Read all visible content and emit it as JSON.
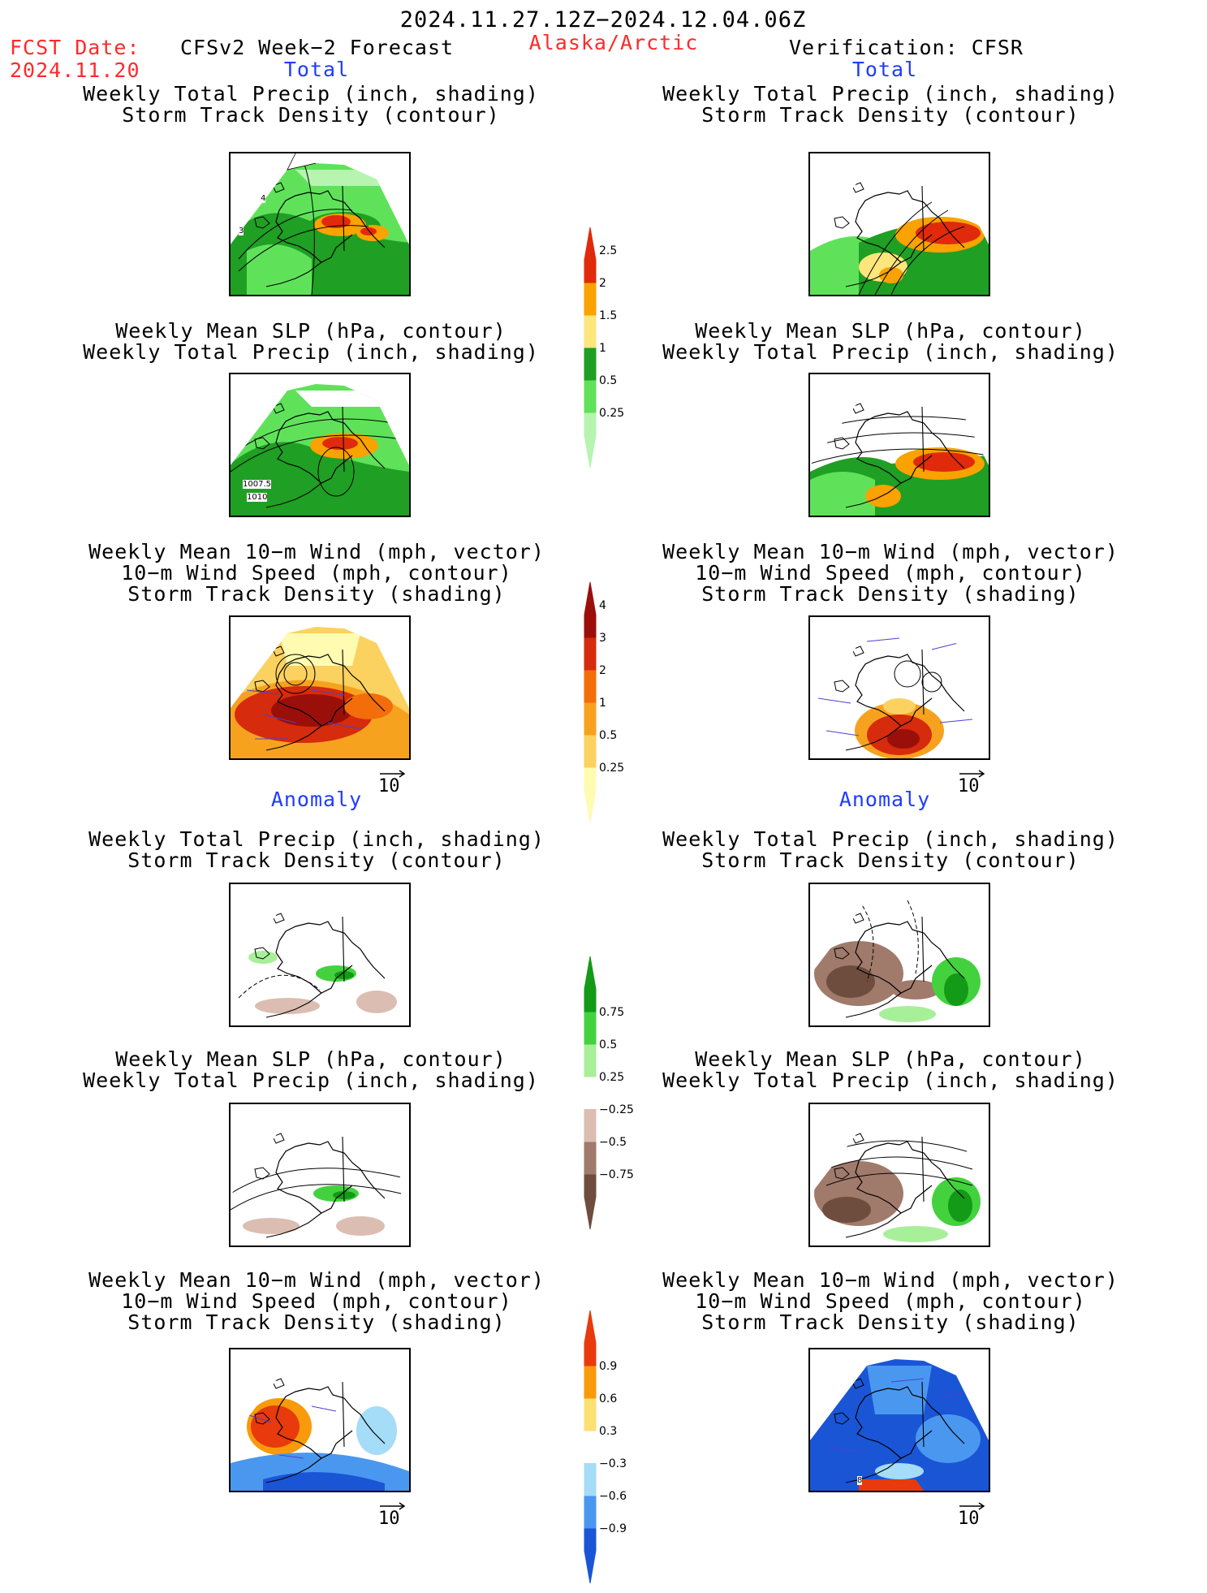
{
  "header": {
    "period": "2024.11.27.12Z−2024.12.04.06Z",
    "fcst_label": "FCST Date:",
    "fcst_date": "2024.11.20",
    "model": "CFSv2 Week−2 Forecast",
    "region": "Alaska/Arctic",
    "verification": "Verification: CFSR"
  },
  "sections": {
    "total": "Total",
    "anomaly": "Anomaly"
  },
  "titles": {
    "precip_storm": [
      "Weekly Total Precip (inch, shading)",
      "Storm Track Density (contour)"
    ],
    "slp_precip": [
      "Weekly Mean SLP (hPa, contour)",
      "Weekly Total Precip (inch, shading)"
    ],
    "wind_storm": [
      "Weekly Mean 10−m Wind (mph, vector)",
      "10−m Wind Speed (mph, contour)",
      "Storm Track Density (shading)"
    ]
  },
  "reference_vector": "10",
  "contour_labels": {
    "storm_a": "4",
    "storm_b": "3",
    "slp_a": "1007.5",
    "slp_b": "1010",
    "wind_anom": "8"
  },
  "colorbars": {
    "precip_total": {
      "colors": [
        "#b6f4b0",
        "#5fe25a",
        "#1f9f23",
        "#fde67c",
        "#f9a200",
        "#e02a0b"
      ],
      "labels": [
        "0.25",
        "0.5",
        "1",
        "1.5",
        "2",
        "2.5"
      ]
    },
    "storm_total": {
      "colors": [
        "#fffbb0",
        "#fbd160",
        "#f7a21f",
        "#f36d0a",
        "#d62b0c",
        "#9a0f0a"
      ],
      "labels": [
        "0.25",
        "0.5",
        "1",
        "2",
        "3",
        "4"
      ]
    },
    "precip_anom": {
      "colors": [
        "#6e4d3f",
        "#a07a6b",
        "#dcbdb2",
        "#ffffff",
        "#a8ef9a",
        "#43d23e",
        "#139a17"
      ],
      "labels": [
        "−0.75",
        "−0.5",
        "−0.25",
        "0.25",
        "0.5",
        "0.75"
      ]
    },
    "storm_anom": {
      "colors": [
        "#1a55d6",
        "#4a97ef",
        "#a5dcf7",
        "#ffffff",
        "#fde072",
        "#f99a0a",
        "#e83a0c"
      ],
      "labels": [
        "−0.9",
        "−0.6",
        "−0.3",
        "0.3",
        "0.6",
        "0.9"
      ]
    }
  }
}
